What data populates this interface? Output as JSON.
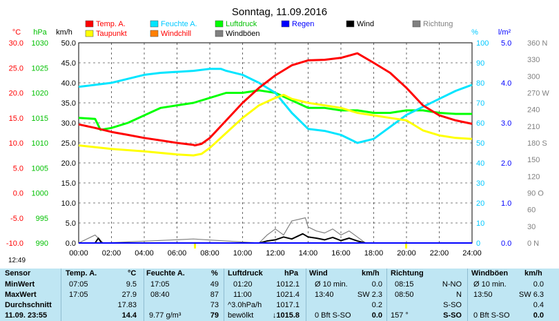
{
  "title": "Sonntag, 11.09.2016",
  "clock": "12:49",
  "legend": [
    {
      "label": "Temp. A.",
      "color": "#ff0000",
      "text_color": "#ff0000"
    },
    {
      "label": "Feuchte A.",
      "color": "#00e5ff",
      "text_color": "#00c8ff"
    },
    {
      "label": "Luftdruck",
      "color": "#00ff00",
      "text_color": "#00c000"
    },
    {
      "label": "Regen",
      "color": "#0000ff",
      "text_color": "#0000ff"
    },
    {
      "label": "Wind",
      "color": "#000000",
      "text_color": "#000000"
    },
    {
      "label": "Richtung",
      "color": "#808080",
      "text_color": "#808080"
    },
    {
      "label": "Taupunkt",
      "color": "#ffff00",
      "text_color": "#ff0000"
    },
    {
      "label": "Windchill",
      "color": "#ff8000",
      "text_color": "#ff0000"
    },
    {
      "label": "Windböen",
      "color": "#808080",
      "text_color": "#000000"
    }
  ],
  "axes": {
    "temp": {
      "unit": "°C",
      "ticks": [
        "30.0",
        "25.0",
        "20.0",
        "15.0",
        "10.0",
        "5.0",
        "0.0",
        "-5.0",
        "-10.0"
      ],
      "color": "#ff0000"
    },
    "pressure": {
      "unit": "hPa",
      "ticks": [
        "1030",
        "1025",
        "1020",
        "1015",
        "1010",
        "1005",
        "1000",
        "995",
        "990"
      ],
      "color": "#00c000"
    },
    "wind": {
      "unit": "km/h",
      "ticks": [
        "50.0",
        "45.0",
        "40.0",
        "35.0",
        "30.0",
        "25.0",
        "20.0",
        "15.0",
        "10.0",
        "5.0",
        "0.0"
      ],
      "color": "#000000"
    },
    "humidity": {
      "unit": "%",
      "ticks": [
        "100",
        "90",
        "80",
        "70",
        "60",
        "50",
        "40",
        "30",
        "20",
        "10",
        "0"
      ],
      "color": "#00c8ff"
    },
    "rain": {
      "unit": "l/m²",
      "ticks": [
        "5.0",
        "4.0",
        "3.0",
        "2.0",
        "1.0",
        "0.0"
      ],
      "color": "#0000ff"
    },
    "direction": {
      "ticks": [
        "360 N",
        "330",
        "300",
        "270 W",
        "240",
        "210",
        "180 S",
        "150",
        "120",
        "90 O",
        "60",
        "30",
        "0 N"
      ],
      "color": "#808080"
    },
    "x_ticks": [
      "00:00",
      "02:00",
      "04:00",
      "06:00",
      "08:00",
      "10:00",
      "12:00",
      "14:00",
      "16:00",
      "18:00",
      "20:00",
      "22:00",
      "24:00"
    ]
  },
  "chart_data": {
    "type": "line",
    "x_unit": "hour of day",
    "x_range": [
      0,
      24
    ],
    "series": [
      {
        "name": "Temp. A.",
        "color": "#ff0000",
        "axis": "°C",
        "range": [
          -10,
          30
        ],
        "points": [
          [
            0,
            13.7
          ],
          [
            1,
            13.0
          ],
          [
            2,
            12.2
          ],
          [
            3,
            11.6
          ],
          [
            4,
            11.0
          ],
          [
            5,
            10.5
          ],
          [
            6,
            10.0
          ],
          [
            7,
            9.6
          ],
          [
            7.08,
            9.5
          ],
          [
            7.5,
            9.8
          ],
          [
            8,
            11.0
          ],
          [
            9,
            14.5
          ],
          [
            10,
            18.0
          ],
          [
            11,
            21.0
          ],
          [
            12,
            23.5
          ],
          [
            13,
            25.5
          ],
          [
            14,
            26.5
          ],
          [
            15,
            26.6
          ],
          [
            16,
            27.0
          ],
          [
            17,
            27.9
          ],
          [
            18,
            26.0
          ],
          [
            19,
            24.0
          ],
          [
            20,
            21.0
          ],
          [
            21,
            17.5
          ],
          [
            22,
            15.5
          ],
          [
            23,
            14.5
          ],
          [
            24,
            13.8
          ]
        ]
      },
      {
        "name": "Taupunkt",
        "color": "#ffff00",
        "axis": "°C",
        "range": [
          -10,
          30
        ],
        "points": [
          [
            0,
            9.5
          ],
          [
            2,
            8.8
          ],
          [
            4,
            8.3
          ],
          [
            6,
            7.7
          ],
          [
            7,
            7.5
          ],
          [
            7.5,
            7.8
          ],
          [
            8,
            9.0
          ],
          [
            9,
            12.0
          ],
          [
            10,
            15.0
          ],
          [
            11,
            17.5
          ],
          [
            12,
            19.0
          ],
          [
            12.5,
            19.6
          ],
          [
            13,
            18.8
          ],
          [
            14,
            18.0
          ],
          [
            15,
            17.5
          ],
          [
            16,
            17.0
          ],
          [
            17,
            16.0
          ],
          [
            18,
            15.5
          ],
          [
            19,
            15.0
          ],
          [
            20,
            14.5
          ],
          [
            21,
            12.5
          ],
          [
            22,
            11.5
          ],
          [
            23,
            11.0
          ],
          [
            24,
            10.8
          ]
        ]
      },
      {
        "name": "Feuchte A.",
        "color": "#00e5ff",
        "axis": "%",
        "range": [
          0,
          100
        ],
        "points": [
          [
            0,
            78
          ],
          [
            1,
            79
          ],
          [
            2,
            80
          ],
          [
            3,
            82
          ],
          [
            4,
            84
          ],
          [
            5,
            85
          ],
          [
            6,
            85.5
          ],
          [
            7,
            86
          ],
          [
            8,
            87
          ],
          [
            8.67,
            87
          ],
          [
            9,
            86
          ],
          [
            10,
            84
          ],
          [
            11,
            80
          ],
          [
            12,
            75
          ],
          [
            13,
            65
          ],
          [
            14,
            57
          ],
          [
            15,
            56
          ],
          [
            16,
            54
          ],
          [
            17,
            50
          ],
          [
            18,
            52
          ],
          [
            19,
            58
          ],
          [
            20,
            64
          ],
          [
            21,
            68
          ],
          [
            22,
            72
          ],
          [
            23,
            76
          ],
          [
            24,
            79
          ]
        ]
      },
      {
        "name": "Luftdruck",
        "color": "#00ff00",
        "axis": "hPa",
        "range": [
          990,
          1030
        ],
        "points": [
          [
            0,
            1015.0
          ],
          [
            1,
            1014.8
          ],
          [
            1.33,
            1012.6
          ],
          [
            2,
            1013.0
          ],
          [
            3,
            1014.0
          ],
          [
            4,
            1015.5
          ],
          [
            5,
            1017.0
          ],
          [
            6,
            1017.5
          ],
          [
            7,
            1018.0
          ],
          [
            8,
            1019.0
          ],
          [
            9,
            1020.0
          ],
          [
            10,
            1020.0
          ],
          [
            11,
            1020.5
          ],
          [
            12,
            1020.0
          ],
          [
            13,
            1018.5
          ],
          [
            14,
            1017.0
          ],
          [
            15,
            1017.0
          ],
          [
            16,
            1016.5
          ],
          [
            17,
            1016.5
          ],
          [
            18,
            1016.0
          ],
          [
            19,
            1016.0
          ],
          [
            20,
            1016.5
          ],
          [
            21,
            1016.5
          ],
          [
            22,
            1016.0
          ],
          [
            23,
            1015.8
          ],
          [
            24,
            1015.8
          ]
        ]
      },
      {
        "name": "Wind",
        "color": "#000000",
        "axis": "km/h",
        "range": [
          0,
          50
        ],
        "points": [
          [
            0,
            0
          ],
          [
            1,
            0
          ],
          [
            1.2,
            1.2
          ],
          [
            1.4,
            0
          ],
          [
            7,
            0
          ],
          [
            11,
            0
          ],
          [
            11.5,
            0.5
          ],
          [
            12,
            0.8
          ],
          [
            12.5,
            1.5
          ],
          [
            13,
            1.0
          ],
          [
            13.67,
            2.3
          ],
          [
            14,
            1.5
          ],
          [
            14.5,
            1.2
          ],
          [
            15,
            0.8
          ],
          [
            15.5,
            1.4
          ],
          [
            16,
            0.6
          ],
          [
            16.5,
            1.2
          ],
          [
            17,
            0.5
          ],
          [
            17.5,
            0
          ],
          [
            24,
            0
          ]
        ]
      },
      {
        "name": "Windböen",
        "color": "#808080",
        "axis": "km/h",
        "range": [
          0,
          50
        ],
        "points": [
          [
            0,
            0
          ],
          [
            1,
            2
          ],
          [
            1.5,
            0
          ],
          [
            7,
            1
          ],
          [
            11,
            0
          ],
          [
            11.5,
            2
          ],
          [
            12,
            3.5
          ],
          [
            12.5,
            2
          ],
          [
            13,
            5.5
          ],
          [
            13.83,
            6.3
          ],
          [
            14,
            4
          ],
          [
            14.5,
            3
          ],
          [
            15,
            2.5
          ],
          [
            15.5,
            3.5
          ],
          [
            16,
            2
          ],
          [
            16.5,
            3
          ],
          [
            17,
            1.5
          ],
          [
            17.5,
            0
          ],
          [
            24,
            0
          ]
        ]
      },
      {
        "name": "Regen",
        "color": "#0000ff",
        "axis": "l/m²",
        "range": [
          0,
          5
        ],
        "points": [
          [
            0,
            0
          ],
          [
            24,
            0
          ]
        ]
      }
    ]
  },
  "table": {
    "headers": {
      "sensor": "Sensor",
      "temp": "Temp. A.",
      "temp_unit": "°C",
      "hum": "Feuchte A.",
      "hum_unit": "%",
      "pres": "Luftdruck",
      "pres_unit": "hPa",
      "wind": "Wind",
      "wind_unit": "km/h",
      "dir": "Richtung",
      "gust": "Windböen",
      "gust_unit": "km/h"
    },
    "rows": [
      {
        "label": "MinWert",
        "temp_time": "07:05",
        "temp": "9.5",
        "hum_time": "17:05",
        "hum": "49",
        "pres_time": "01:20",
        "pres": "1012.1",
        "wind_info": "Ø 10 min.",
        "wind": "0.0",
        "dir_time": "08:15",
        "dir": "N-NO",
        "gust_info": "Ø 10 min.",
        "gust": "0.0"
      },
      {
        "label": "MaxWert",
        "temp_time": "17:05",
        "temp": "27.9",
        "hum_time": "08:40",
        "hum": "87",
        "pres_time": "11:00",
        "pres": "1021.4",
        "wind_info": "13:40",
        "wind": "SW 2.3",
        "dir_time": "08:50",
        "dir": "N",
        "gust_info": "13:50",
        "gust": "SW 6.3"
      },
      {
        "label": "Durchschnitt",
        "temp_time": "",
        "temp": "17.83",
        "hum_time": "",
        "hum": "73",
        "pres_time": "^3.0hPa/h",
        "pres": "1017.1",
        "wind_info": "",
        "wind": "0.2",
        "dir_time": "",
        "dir": "S-SO",
        "gust_info": "",
        "gust": "0.4"
      },
      {
        "label": "11.09. 23:55",
        "temp_time": "",
        "temp": "14.4",
        "hum_time": "9.77 g/m³",
        "hum": "79",
        "pres_time": "bewölkt",
        "pres": "↓1015.8",
        "wind_info": "0 Bft S-SO",
        "wind": "0.0",
        "dir_time": "157 °",
        "dir": "S-SO",
        "gust_info": "0 Bft S-SO",
        "gust": "0.0"
      }
    ]
  }
}
